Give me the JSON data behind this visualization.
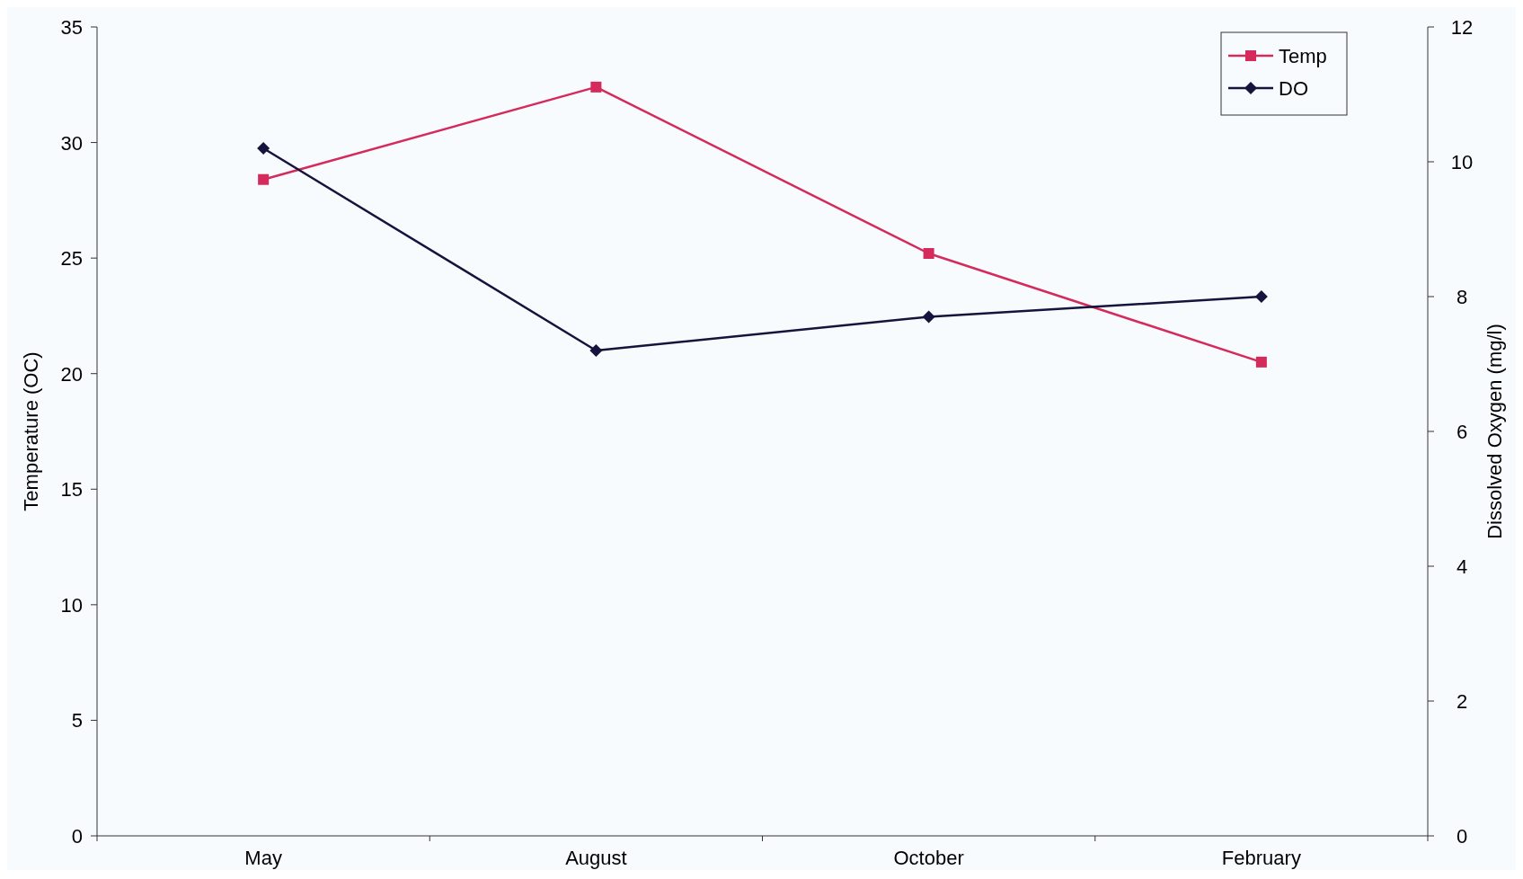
{
  "chart_data": {
    "type": "line",
    "categories": [
      "May",
      "August",
      "October",
      "February"
    ],
    "ylabel": "Temperature (OC)",
    "y2label": "Dissolved Oxygen (mg/l)",
    "ylim": [
      0,
      35
    ],
    "yticks": [
      0,
      5,
      10,
      15,
      20,
      25,
      30,
      35
    ],
    "y2lim": [
      0,
      12
    ],
    "y2ticks": [
      0,
      2,
      4,
      6,
      8,
      10,
      12
    ],
    "series": [
      {
        "name": "Temp",
        "color": "#d42a5c",
        "values": [
          28.4,
          32.4,
          25.2,
          20.5
        ],
        "marker": "square"
      },
      {
        "name": "DO",
        "color": "#14143c",
        "values": [
          10.2,
          7.2,
          7.7,
          8.0
        ],
        "axis": "y2",
        "marker": "diamond"
      }
    ],
    "legend": "top right",
    "grid": false,
    "line_style": "solid"
  }
}
